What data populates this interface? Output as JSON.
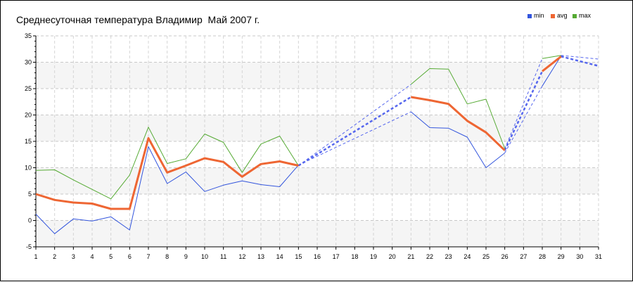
{
  "chart_data": {
    "type": "line",
    "title": "Среднесуточная температура Владимир  Май 2007 г.",
    "xlabel": "",
    "ylabel": "",
    "xlim": [
      1,
      31
    ],
    "ylim": [
      -5,
      35
    ],
    "x_ticks": [
      "1",
      "2",
      "3",
      "4",
      "5",
      "6",
      "7",
      "8",
      "9",
      "10",
      "11",
      "12",
      "13",
      "14",
      "15",
      "16",
      "17",
      "18",
      "19",
      "20",
      "21",
      "22",
      "23",
      "24",
      "25",
      "26",
      "27",
      "28",
      "29",
      "30",
      "31"
    ],
    "y_ticks": [
      "-5",
      "0",
      "5",
      "10",
      "15",
      "20",
      "25",
      "30",
      "35"
    ],
    "y_tick_values": [
      -5,
      0,
      5,
      10,
      15,
      20,
      25,
      30,
      35
    ],
    "grid": true,
    "legend_position": "top-right",
    "x": [
      1,
      2,
      3,
      4,
      5,
      6,
      7,
      8,
      9,
      10,
      11,
      12,
      13,
      14,
      15,
      21,
      22,
      23,
      24,
      25,
      26,
      28,
      29,
      31
    ],
    "series": [
      {
        "name": "min",
        "color": "#3355dd",
        "values": [
          1.2,
          -2.5,
          0.3,
          -0.1,
          0.7,
          -1.8,
          14.0,
          7.0,
          9.2,
          5.5,
          6.7,
          7.5,
          6.8,
          6.4,
          10.5,
          20.6,
          17.6,
          17.5,
          15.8,
          10.0,
          12.8,
          25.5,
          31.2,
          29.2
        ]
      },
      {
        "name": "avg",
        "color": "#ee6633",
        "values": [
          5.0,
          3.9,
          3.4,
          3.2,
          2.2,
          2.2,
          15.6,
          9.1,
          10.4,
          11.8,
          11.1,
          8.3,
          10.7,
          11.2,
          10.4,
          23.4,
          22.8,
          22.1,
          18.9,
          16.7,
          13.3,
          28.3,
          31.1,
          29.3
        ]
      },
      {
        "name": "max",
        "color": "#55aa33",
        "values": [
          9.5,
          9.6,
          7.7,
          5.9,
          4.1,
          8.6,
          17.7,
          10.8,
          11.7,
          16.4,
          14.8,
          9.1,
          14.5,
          16.0,
          10.4,
          25.8,
          28.8,
          28.7,
          22.1,
          23.0,
          13.6,
          30.7,
          31.3,
          30.6
        ]
      }
    ],
    "gaps": [
      {
        "from_x": 15,
        "to_x": 21
      },
      {
        "from_x": 26,
        "to_x": 28
      },
      {
        "from_x": 29,
        "to_x": 31
      }
    ],
    "gap_color": "#5566ee"
  }
}
